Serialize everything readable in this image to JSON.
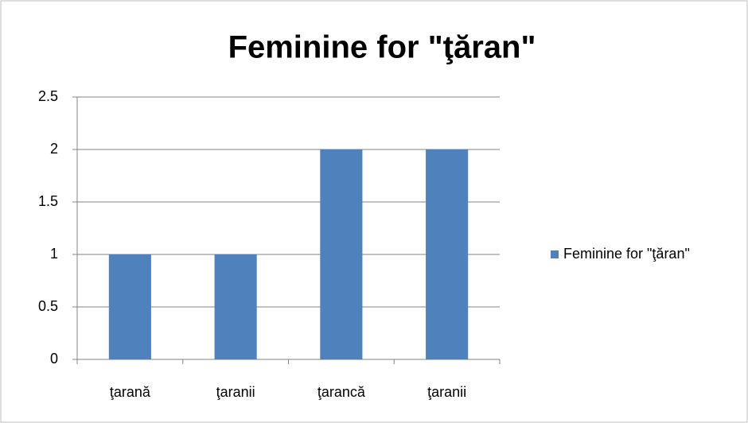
{
  "chart_data": {
    "type": "bar",
    "title": "Feminine for \"ţăran\"",
    "categories": [
      "ţarană",
      "ţaranii",
      "ţarancă",
      "ţaranii"
    ],
    "series": [
      {
        "name": "Feminine for \"ţăran\"",
        "color": "#4f81bd",
        "values": [
          1,
          1,
          2,
          2
        ]
      }
    ],
    "ylim": [
      0,
      2.5
    ],
    "yticks": [
      0,
      0.5,
      1,
      1.5,
      2,
      2.5
    ],
    "grid": true,
    "legend": "right"
  }
}
